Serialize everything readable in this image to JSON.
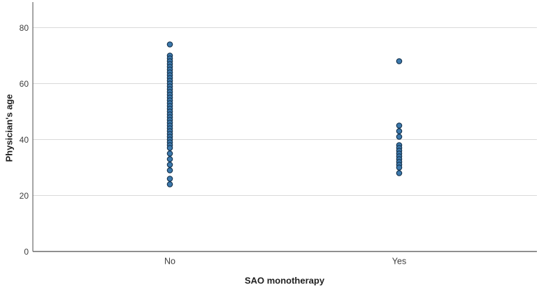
{
  "chart_data": {
    "type": "scatter",
    "subtype": "strip-plot",
    "title": "",
    "xlabel": "SAO monotherapy",
    "ylabel": "Physician's age",
    "categories": [
      "No",
      "Yes"
    ],
    "series": [
      {
        "name": "No",
        "values": [
          74,
          70,
          69,
          68,
          67,
          66,
          65,
          64,
          63,
          62,
          61,
          60,
          59,
          58,
          57,
          56,
          55,
          54,
          53,
          52,
          51,
          50,
          49,
          48,
          47,
          46,
          45,
          44,
          43,
          42,
          41,
          40,
          39,
          38,
          37,
          35,
          33,
          31,
          29,
          26,
          24
        ]
      },
      {
        "name": "Yes",
        "values": [
          68,
          45,
          43,
          41,
          38,
          37,
          36,
          35,
          34,
          33,
          32,
          31,
          30,
          28
        ]
      }
    ],
    "yticks": [
      0,
      20,
      40,
      60,
      80
    ],
    "ylim": [
      0,
      89
    ],
    "grid": "horizontal",
    "legend": "none",
    "colors": {
      "marker_fill": "#3c79ad",
      "marker_stroke": "#16344f",
      "gridline": "#d9d9d9",
      "axis_line": "#6a6a6a",
      "tick_text": "#3d3d3d",
      "title_text": "#1f1f1f",
      "background": "#ffffff"
    }
  }
}
